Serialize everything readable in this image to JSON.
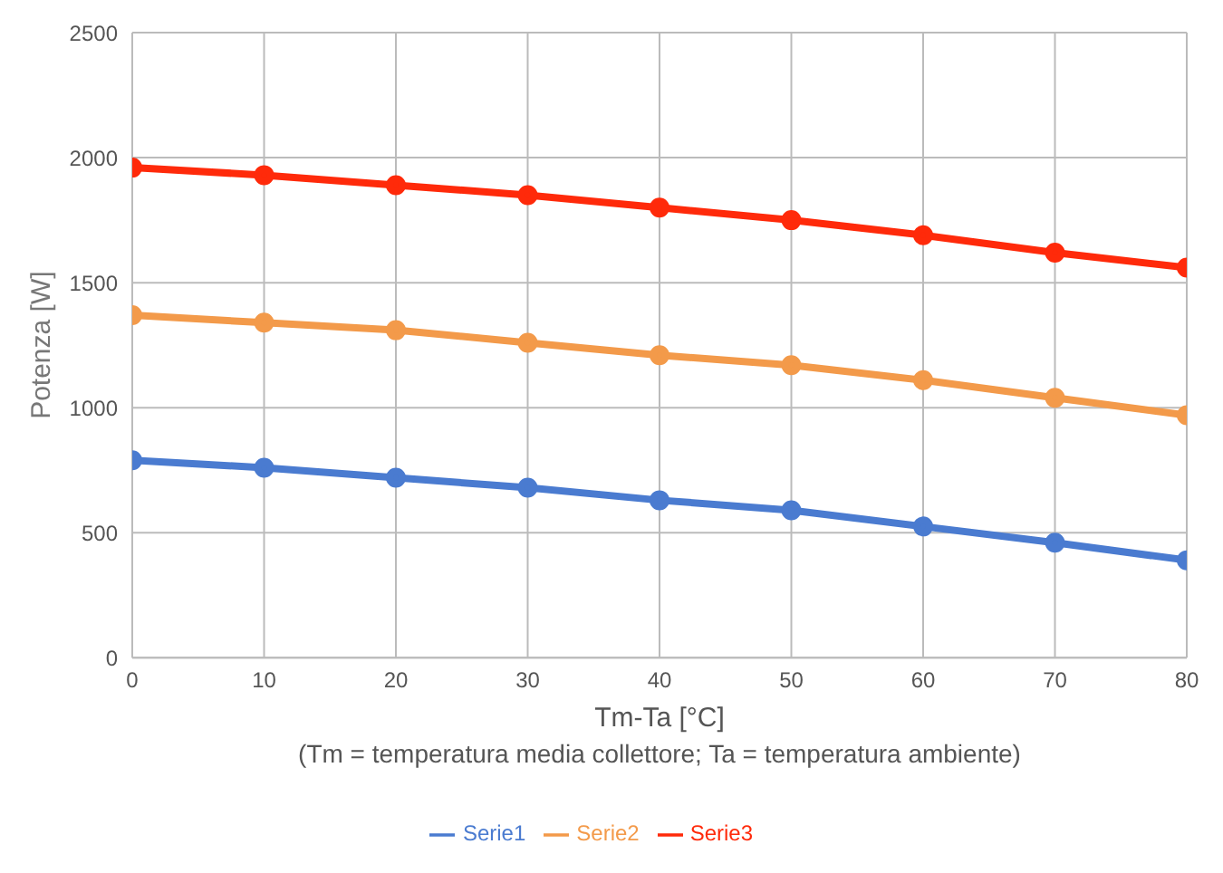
{
  "chart_data": {
    "type": "line",
    "xlabel": "Tm-Ta [°C]",
    "ylabel": "Potenza  [W]",
    "annotations": [
      "(Tm = temperatura media collettore;  Ta = temperatura ambiente)"
    ],
    "x": [
      0,
      10,
      20,
      30,
      40,
      50,
      60,
      70,
      80
    ],
    "series": [
      {
        "name": "Serie1",
        "color": "#4a7bd0",
        "values": [
          790,
          760,
          720,
          680,
          630,
          590,
          525,
          460,
          390
        ]
      },
      {
        "name": "Serie2",
        "color": "#f39a4a",
        "values": [
          1370,
          1340,
          1310,
          1260,
          1210,
          1170,
          1110,
          1040,
          970
        ]
      },
      {
        "name": "Serie3",
        "color": "#ff2a0a",
        "values": [
          1960,
          1930,
          1890,
          1850,
          1800,
          1750,
          1690,
          1620,
          1560
        ]
      }
    ],
    "xlim": [
      0,
      80
    ],
    "xticks": [
      0,
      10,
      20,
      30,
      40,
      50,
      60,
      70,
      80
    ],
    "ylim": [
      0,
      2500
    ],
    "yticks": [
      0,
      500,
      1000,
      1500,
      2000,
      2500
    ],
    "grid": true,
    "legend": "bottom",
    "marker": "circle",
    "line_style": "solid"
  }
}
